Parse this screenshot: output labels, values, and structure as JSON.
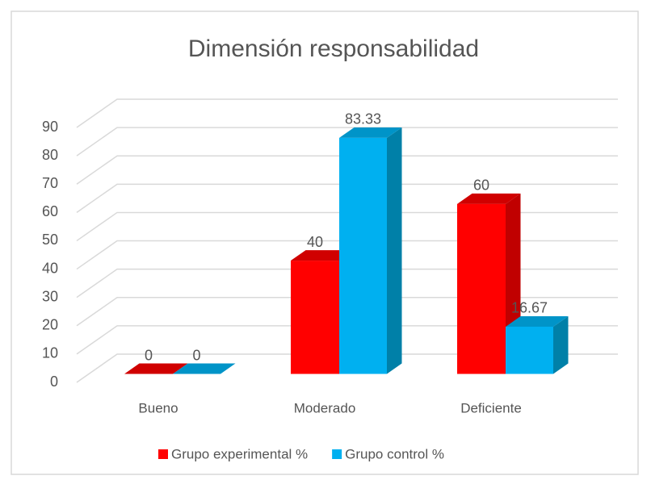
{
  "chart_data": {
    "type": "bar3d",
    "title": "Dimensión responsabilidad",
    "categories": [
      "Bueno",
      "Moderado",
      "Deficiente"
    ],
    "series": [
      {
        "name": "Grupo experimental %",
        "color": "#ff0000",
        "values": [
          0,
          40,
          60
        ]
      },
      {
        "name": "Grupo control %",
        "color": "#00b0f0",
        "values": [
          0,
          83.33,
          16.67
        ]
      }
    ],
    "ylim": [
      0,
      90
    ],
    "yticks": [
      0,
      10,
      20,
      30,
      40,
      50,
      60,
      70,
      80,
      90
    ],
    "grid": true,
    "legend": "bottom"
  }
}
